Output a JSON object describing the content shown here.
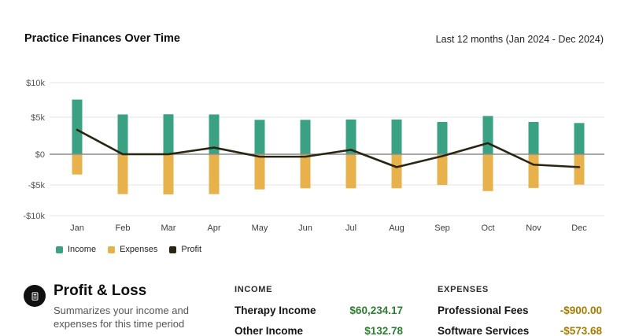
{
  "header": {
    "title": "Practice Finances Over Time",
    "range_label": "Last 12 months (Jan 2024 - Dec 2024)"
  },
  "chart_data": {
    "type": "bar",
    "title": "Practice Finances Over Time",
    "subtitle": "Last 12 months (Jan 2024 - Dec 2024)",
    "categories": [
      "Jan",
      "Feb",
      "Mar",
      "Apr",
      "May",
      "Jun",
      "Jul",
      "Aug",
      "Sep",
      "Oct",
      "Nov",
      "Dec"
    ],
    "series": [
      {
        "name": "Income",
        "type": "bar",
        "color": "#3aa282",
        "values": [
          7550,
          5400,
          5430,
          5400,
          4650,
          4650,
          4700,
          4700,
          4360,
          5180,
          4360,
          4220
        ]
      },
      {
        "name": "Expenses",
        "type": "bar",
        "color": "#e7b24c",
        "values": [
          -3300,
          -6500,
          -6550,
          -6500,
          -5730,
          -5550,
          -5550,
          -5550,
          -5000,
          -6000,
          -5500,
          -4950
        ]
      },
      {
        "name": "Profit",
        "type": "line",
        "color": "#2a2512",
        "values": [
          3300,
          0,
          0,
          900,
          -400,
          -400,
          600,
          -2100,
          -300,
          1500,
          -1700,
          -2100
        ]
      }
    ],
    "ylim": [
      -10000,
      10000
    ],
    "y_ticks": [
      {
        "label": "$10k",
        "value": 10000
      },
      {
        "label": "$5k",
        "value": 5000
      },
      {
        "label": "$0",
        "value": 0
      },
      {
        "label": "-$5k",
        "value": -5000
      },
      {
        "label": "-$10k",
        "value": -10000
      }
    ],
    "grid": true,
    "legend_position": "bottom-left",
    "axis_text_color": "#555555",
    "zero_line_color": "#8c8c8c",
    "grid_line_color": "#e3e3e3"
  },
  "summary": {
    "icon": "calculator-icon",
    "title": "Profit & Loss",
    "description": "Summarizes your income and expenses for this time period",
    "income": {
      "header": "INCOME",
      "value_color": "#2e7d32",
      "rows": [
        {
          "label": "Therapy Income",
          "value": "$60,234.17"
        },
        {
          "label": "Other Income",
          "value": "$132.78"
        }
      ]
    },
    "expenses": {
      "header": "EXPENSES",
      "value_color": "#a67c00",
      "rows": [
        {
          "label": "Professional Fees",
          "value": "-$900.00"
        },
        {
          "label": "Software Services",
          "value": "-$573.68"
        }
      ]
    }
  }
}
